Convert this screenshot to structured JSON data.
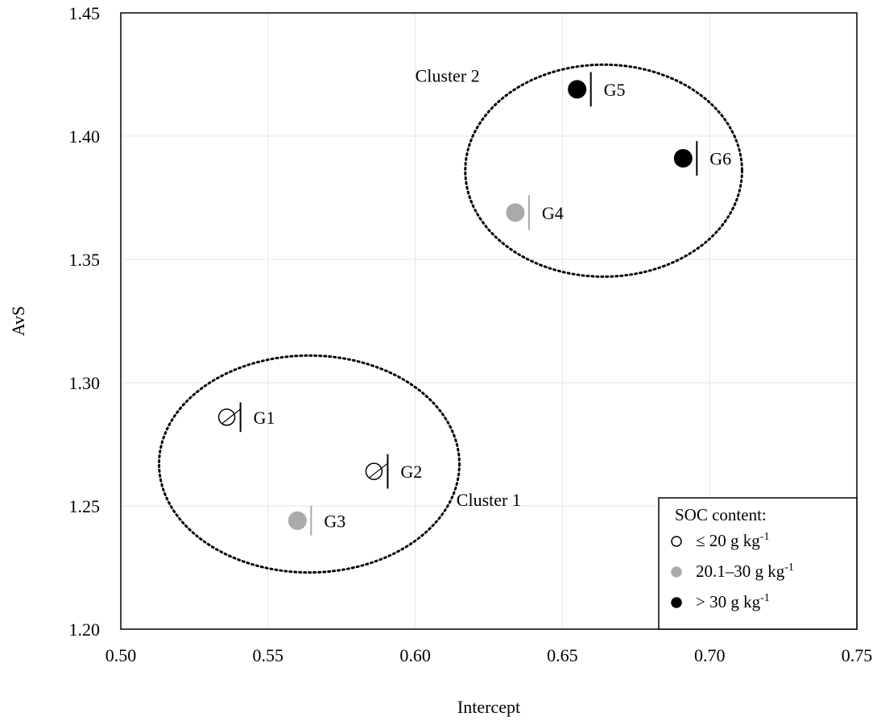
{
  "chart_data": {
    "type": "scatter",
    "xlabel": "Intercept",
    "ylabel": "AvS",
    "xlim": [
      0.5,
      0.75
    ],
    "ylim": [
      1.2,
      1.45
    ],
    "x_ticks": [
      "0.50",
      "0.55",
      "0.60",
      "0.65",
      "0.70",
      "0.75"
    ],
    "y_ticks": [
      "1.20",
      "1.25",
      "1.30",
      "1.35",
      "1.40",
      "1.45"
    ],
    "grid": true,
    "points": [
      {
        "label": "G1",
        "x": 0.536,
        "y": 1.286,
        "yerr": 0.006,
        "category": "low"
      },
      {
        "label": "G2",
        "x": 0.586,
        "y": 1.264,
        "yerr": 0.007,
        "category": "low"
      },
      {
        "label": "G3",
        "x": 0.56,
        "y": 1.244,
        "yerr": 0.006,
        "category": "mid"
      },
      {
        "label": "G4",
        "x": 0.634,
        "y": 1.369,
        "yerr": 0.007,
        "category": "mid"
      },
      {
        "label": "G5",
        "x": 0.655,
        "y": 1.419,
        "yerr": 0.007,
        "category": "high"
      },
      {
        "label": "G6",
        "x": 0.691,
        "y": 1.391,
        "yerr": 0.007,
        "category": "high"
      }
    ],
    "clusters": [
      {
        "label": "Cluster  1",
        "cx": 0.564,
        "cy": 1.267,
        "rx": 0.051,
        "ry": 0.044,
        "label_x": 0.614,
        "label_y": 1.25
      },
      {
        "label": "Cluster  2",
        "cx": 0.664,
        "cy": 1.386,
        "rx": 0.047,
        "ry": 0.043,
        "label_x": 0.6,
        "label_y": 1.422
      }
    ],
    "legend": {
      "title": "SOC content:",
      "placement": "bottom-right",
      "entries": [
        {
          "key": "low",
          "text": "≤ 20 g kg",
          "sup": "-1",
          "fill": "#ffffff",
          "stroke": "#000000"
        },
        {
          "key": "mid",
          "text": "20.1–30 g kg",
          "sup": "-1",
          "fill": "#aaaaaa",
          "stroke": "#aaaaaa"
        },
        {
          "key": "high",
          "text": "> 30 g kg",
          "sup": "-1",
          "fill": "#000000",
          "stroke": "#000000"
        }
      ]
    }
  }
}
